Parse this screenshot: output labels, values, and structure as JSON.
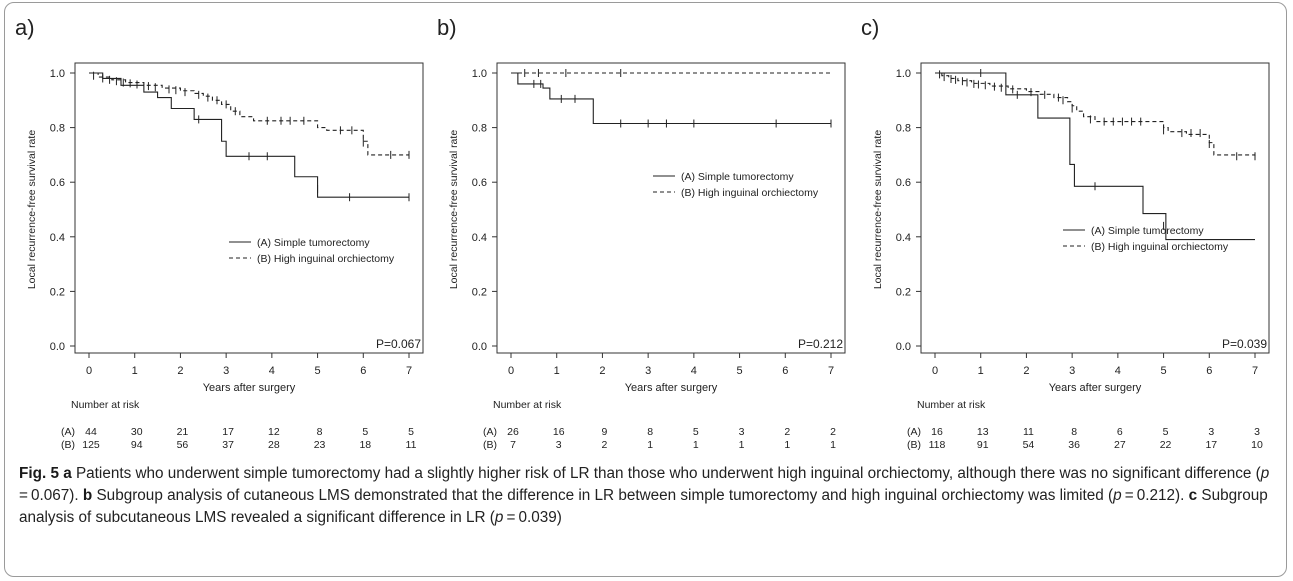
{
  "chart_data": [
    {
      "type": "line",
      "panel": "a)",
      "ylabel": "Local recurrence-free survival rate",
      "xlabel": "Years after surgery",
      "x_ticks": [
        0,
        1,
        2,
        3,
        4,
        5,
        6,
        7
      ],
      "y_ticks": [
        "0.0",
        "0.2",
        "0.4",
        "0.6",
        "0.8",
        "1.0"
      ],
      "xlim": [
        0,
        7
      ],
      "ylim": [
        0,
        1
      ],
      "pvalue": "P=0.067",
      "legend_position": "center-right",
      "series": [
        {
          "name": "(A) Simple tumorectomy",
          "style": "solid",
          "steps": [
            [
              0,
              1.0
            ],
            [
              0.3,
              0.98
            ],
            [
              0.7,
              0.955
            ],
            [
              1.2,
              0.93
            ],
            [
              1.5,
              0.91
            ],
            [
              1.8,
              0.87
            ],
            [
              2.3,
              0.83
            ],
            [
              2.9,
              0.75
            ],
            [
              3.0,
              0.695
            ],
            [
              4.5,
              0.62
            ],
            [
              5.0,
              0.545
            ],
            [
              7.0,
              0.545
            ]
          ],
          "censors": [
            [
              2.4,
              0.83
            ],
            [
              3.5,
              0.695
            ],
            [
              3.9,
              0.695
            ],
            [
              5.0,
              0.575
            ],
            [
              5.7,
              0.545
            ],
            [
              7.0,
              0.545
            ]
          ]
        },
        {
          "name": "(B) High inguinal orchiectomy",
          "style": "dashed",
          "steps": [
            [
              0,
              1.0
            ],
            [
              0.2,
              0.985
            ],
            [
              0.5,
              0.975
            ],
            [
              0.8,
              0.965
            ],
            [
              1.2,
              0.955
            ],
            [
              1.6,
              0.945
            ],
            [
              2.0,
              0.935
            ],
            [
              2.3,
              0.925
            ],
            [
              2.5,
              0.915
            ],
            [
              2.7,
              0.9
            ],
            [
              2.9,
              0.885
            ],
            [
              3.1,
              0.86
            ],
            [
              3.3,
              0.84
            ],
            [
              3.6,
              0.825
            ],
            [
              5.0,
              0.8
            ],
            [
              5.2,
              0.79
            ],
            [
              6.0,
              0.75
            ],
            [
              6.1,
              0.7
            ],
            [
              7.0,
              0.7
            ]
          ],
          "censors": [
            [
              0.1,
              0.99
            ],
            [
              0.3,
              0.98
            ],
            [
              0.45,
              0.975
            ],
            [
              0.6,
              0.97
            ],
            [
              0.75,
              0.965
            ],
            [
              0.9,
              0.962
            ],
            [
              1.05,
              0.958
            ],
            [
              1.3,
              0.952
            ],
            [
              1.45,
              0.948
            ],
            [
              1.75,
              0.94
            ],
            [
              1.9,
              0.937
            ],
            [
              2.1,
              0.93
            ],
            [
              2.4,
              0.92
            ],
            [
              2.6,
              0.91
            ],
            [
              2.8,
              0.9
            ],
            [
              3.0,
              0.885
            ],
            [
              3.2,
              0.86
            ],
            [
              3.9,
              0.825
            ],
            [
              4.2,
              0.825
            ],
            [
              4.4,
              0.825
            ],
            [
              4.7,
              0.825
            ],
            [
              5.5,
              0.79
            ],
            [
              5.75,
              0.79
            ],
            [
              6.0,
              0.745
            ],
            [
              6.6,
              0.7
            ],
            [
              7.0,
              0.7
            ]
          ]
        }
      ],
      "risk_table": {
        "label": "Number at risk",
        "rows": [
          {
            "group": "(A)",
            "values": [
              "44",
              "30",
              "21",
              "17",
              "12",
              "8",
              "5",
              "5"
            ]
          },
          {
            "group": "(B)",
            "values": [
              "125",
              "94",
              "56",
              "37",
              "28",
              "23",
              "18",
              "11"
            ]
          }
        ]
      }
    },
    {
      "type": "line",
      "panel": "b)",
      "ylabel": "Local recurrence-free survival rate",
      "xlabel": "Years after surgery",
      "x_ticks": [
        0,
        1,
        2,
        3,
        4,
        5,
        6,
        7
      ],
      "y_ticks": [
        "0.0",
        "0.2",
        "0.4",
        "0.6",
        "0.8",
        "1.0"
      ],
      "xlim": [
        0,
        7
      ],
      "ylim": [
        0,
        1
      ],
      "pvalue": "P=0.212",
      "legend_position": "center-right",
      "series": [
        {
          "name": "(A) Simple tumorectomy",
          "style": "solid",
          "steps": [
            [
              0,
              1.0
            ],
            [
              0.15,
              0.96
            ],
            [
              0.7,
              0.945
            ],
            [
              0.85,
              0.905
            ],
            [
              1.7,
              0.905
            ],
            [
              1.8,
              0.815
            ],
            [
              7.0,
              0.815
            ]
          ],
          "censors": [
            [
              0.5,
              0.96
            ],
            [
              0.65,
              0.96
            ],
            [
              1.1,
              0.905
            ],
            [
              1.4,
              0.905
            ],
            [
              2.4,
              0.815
            ],
            [
              3.0,
              0.815
            ],
            [
              3.4,
              0.815
            ],
            [
              4.0,
              0.815
            ],
            [
              5.8,
              0.815
            ],
            [
              7.0,
              0.815
            ]
          ]
        },
        {
          "name": "(B) High inguinal orchiectomy",
          "style": "dashed",
          "steps": [
            [
              0,
              1.0
            ],
            [
              7.0,
              1.0
            ]
          ],
          "censors": [
            [
              0.3,
              1.0
            ],
            [
              0.6,
              1.0
            ],
            [
              1.2,
              1.0
            ],
            [
              2.4,
              1.0
            ]
          ]
        }
      ],
      "risk_table": {
        "label": "Number at risk",
        "rows": [
          {
            "group": "(A)",
            "values": [
              "26",
              "16",
              "9",
              "8",
              "5",
              "3",
              "2",
              "2"
            ]
          },
          {
            "group": "(B)",
            "values": [
              "7",
              "3",
              "2",
              "1",
              "1",
              "1",
              "1",
              "1"
            ]
          }
        ]
      }
    },
    {
      "type": "line",
      "panel": "c)",
      "ylabel": "Local recurrence-free survival rate",
      "xlabel": "Years after surgery",
      "x_ticks": [
        0,
        1,
        2,
        3,
        4,
        5,
        6,
        7
      ],
      "y_ticks": [
        "0.0",
        "0.2",
        "0.4",
        "0.6",
        "0.8",
        "1.0"
      ],
      "xlim": [
        0,
        7
      ],
      "ylim": [
        0,
        1
      ],
      "pvalue": "P=0.039",
      "legend_position": "center-right",
      "series": [
        {
          "name": "(A) Simple tumorectomy",
          "style": "solid",
          "steps": [
            [
              0,
              1.0
            ],
            [
              1.5,
              1.0
            ],
            [
              1.55,
              0.92
            ],
            [
              2.2,
              0.92
            ],
            [
              2.25,
              0.835
            ],
            [
              2.9,
              0.835
            ],
            [
              2.95,
              0.665
            ],
            [
              3.05,
              0.585
            ],
            [
              4.5,
              0.585
            ],
            [
              4.55,
              0.485
            ],
            [
              5.0,
              0.485
            ],
            [
              5.05,
              0.39
            ],
            [
              7.0,
              0.39
            ]
          ],
          "censors": [
            [
              1.0,
              1.0
            ],
            [
              1.8,
              0.92
            ],
            [
              3.5,
              0.585
            ],
            [
              5.0,
              0.44
            ]
          ]
        },
        {
          "name": "(B) High inguinal orchiectomy",
          "style": "dashed",
          "steps": [
            [
              0,
              1.0
            ],
            [
              0.15,
              0.99
            ],
            [
              0.3,
              0.98
            ],
            [
              0.5,
              0.972
            ],
            [
              0.8,
              0.962
            ],
            [
              1.2,
              0.952
            ],
            [
              1.6,
              0.942
            ],
            [
              2.0,
              0.932
            ],
            [
              2.3,
              0.922
            ],
            [
              2.6,
              0.91
            ],
            [
              2.9,
              0.895
            ],
            [
              3.0,
              0.88
            ],
            [
              3.1,
              0.86
            ],
            [
              3.25,
              0.84
            ],
            [
              3.5,
              0.822
            ],
            [
              5.0,
              0.8
            ],
            [
              5.1,
              0.785
            ],
            [
              5.5,
              0.775
            ],
            [
              6.0,
              0.745
            ],
            [
              6.1,
              0.7
            ],
            [
              7.0,
              0.695
            ]
          ],
          "censors": [
            [
              0.1,
              0.995
            ],
            [
              0.2,
              0.985
            ],
            [
              0.35,
              0.978
            ],
            [
              0.45,
              0.975
            ],
            [
              0.6,
              0.97
            ],
            [
              0.7,
              0.965
            ],
            [
              0.85,
              0.96
            ],
            [
              0.95,
              0.958
            ],
            [
              1.1,
              0.955
            ],
            [
              1.3,
              0.95
            ],
            [
              1.45,
              0.946
            ],
            [
              1.7,
              0.94
            ],
            [
              2.1,
              0.93
            ],
            [
              2.4,
              0.92
            ],
            [
              2.7,
              0.91
            ],
            [
              2.8,
              0.9
            ],
            [
              3.0,
              0.87
            ],
            [
              3.4,
              0.83
            ],
            [
              3.7,
              0.822
            ],
            [
              3.9,
              0.822
            ],
            [
              4.1,
              0.822
            ],
            [
              4.3,
              0.822
            ],
            [
              4.5,
              0.822
            ],
            [
              5.0,
              0.79
            ],
            [
              5.4,
              0.78
            ],
            [
              5.6,
              0.78
            ],
            [
              5.8,
              0.78
            ],
            [
              6.0,
              0.74
            ],
            [
              6.6,
              0.695
            ],
            [
              7.0,
              0.695
            ]
          ]
        }
      ],
      "risk_table": {
        "label": "Number at risk",
        "rows": [
          {
            "group": "(A)",
            "values": [
              "16",
              "13",
              "11",
              "8",
              "6",
              "5",
              "3",
              "3"
            ]
          },
          {
            "group": "(B)",
            "values": [
              "118",
              "91",
              "54",
              "36",
              "27",
              "22",
              "17",
              "10"
            ]
          }
        ]
      }
    }
  ],
  "caption": {
    "fig_label": "Fig. 5",
    "a_label": "a",
    "a_text_1": " Patients who underwent simple tumorectomy had a slightly higher risk of LR than those who underwent high inguinal orchiectomy, although there was no significant difference (",
    "a_p": "p",
    "a_text_2": " = 0.067). ",
    "b_label": "b",
    "b_text_1": " Subgroup analysis of cutaneous LMS demonstrated that the difference in LR between simple tumorectomy and high inguinal orchiectomy was limited (",
    "b_p": "p",
    "b_text_2": " = 0.212). ",
    "c_label": "c",
    "c_text_1": " Subgroup analysis of subcutaneous LMS revealed a significant difference in LR (",
    "c_p": "p",
    "c_text_2": " = 0.039)"
  }
}
